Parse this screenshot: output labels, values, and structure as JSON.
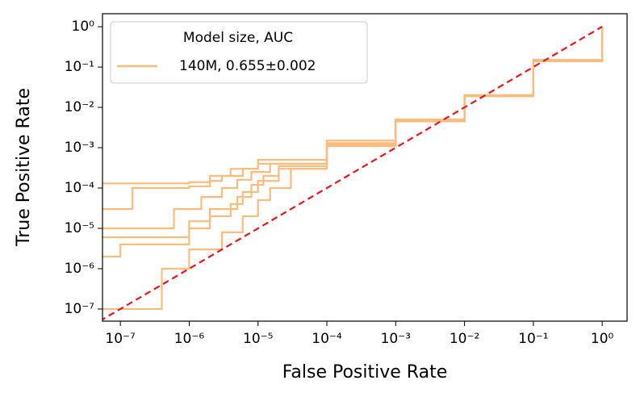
{
  "chart_data": {
    "type": "roc-step",
    "x_label": "False Positive Rate",
    "y_label": "True Positive Rate",
    "log_x": true,
    "log_y": true,
    "xlim": [
      5.5e-08,
      2.3
    ],
    "ylim": [
      5e-08,
      2.1
    ],
    "xticks": [
      {
        "value": 1e-07,
        "label": "10⁻⁷"
      },
      {
        "value": 1e-06,
        "label": "10⁻⁶"
      },
      {
        "value": 1e-05,
        "label": "10⁻⁵"
      },
      {
        "value": 0.0001,
        "label": "10⁻⁴"
      },
      {
        "value": 0.001,
        "label": "10⁻³"
      },
      {
        "value": 0.01,
        "label": "10⁻²"
      },
      {
        "value": 0.1,
        "label": "10⁻¹"
      },
      {
        "value": 1,
        "label": "10⁰"
      }
    ],
    "yticks": [
      {
        "value": 1e-07,
        "label": "10⁻⁷"
      },
      {
        "value": 1e-06,
        "label": "10⁻⁶"
      },
      {
        "value": 1e-05,
        "label": "10⁻⁵"
      },
      {
        "value": 0.0001,
        "label": "10⁻⁴"
      },
      {
        "value": 0.001,
        "label": "10⁻³"
      },
      {
        "value": 0.01,
        "label": "10⁻²"
      },
      {
        "value": 0.1,
        "label": "10⁻¹"
      },
      {
        "value": 1,
        "label": "10⁰"
      }
    ],
    "legend_title": "Model size, AUC",
    "legend_position": "upper left",
    "series": [
      {
        "name": "140M, 0.655±0.002",
        "color": "#fdbb7c",
        "curves": [
          {
            "x": [
              5.5e-08,
              1e-06,
              2e-06,
              4e-06,
              1e-05,
              0.0001,
              0.001,
              0.01,
              0.1,
              1
            ],
            "y": [
              0.00013,
              0.00014,
              0.0002,
              0.0003,
              0.0005,
              0.0015,
              0.005,
              0.02,
              0.15,
              1
            ]
          },
          {
            "x": [
              5.5e-08,
              1.5e-07,
              1e-06,
              2e-06,
              3e-06,
              6e-06,
              1e-05,
              0.0001,
              0.001,
              0.01,
              0.1,
              1
            ],
            "y": [
              3e-05,
              0.0001,
              0.00011,
              0.00015,
              0.0002,
              0.0003,
              0.0004,
              0.0013,
              0.0045,
              0.02,
              0.14,
              1
            ]
          },
          {
            "x": [
              5.5e-08,
              2e-07,
              6e-07,
              1.5e-06,
              3e-06,
              5e-06,
              8e-06,
              1.5e-05,
              0.0001,
              0.001,
              0.01,
              0.1,
              1
            ],
            "y": [
              1e-05,
              1e-05,
              3e-05,
              6e-05,
              0.0001,
              0.00016,
              0.00025,
              0.0004,
              0.0012,
              0.0045,
              0.019,
              0.14,
              1
            ]
          },
          {
            "x": [
              5.5e-08,
              1e-07,
              1e-06,
              2e-06,
              4e-06,
              6e-06,
              1e-05,
              2e-05,
              0.0001,
              0.001,
              0.01,
              0.1,
              1
            ],
            "y": [
              2e-06,
              4e-06,
              1e-05,
              2e-05,
              4e-05,
              8e-05,
              0.00015,
              0.00035,
              0.0012,
              0.0045,
              0.019,
              0.14,
              1
            ]
          },
          {
            "x": [
              5.5e-08,
              1.1e-07,
              4e-07,
              1e-06,
              3e-06,
              6e-06,
              1e-05,
              1.5e-05,
              3e-05,
              0.0001,
              0.001,
              0.01,
              0.1,
              1
            ],
            "y": [
              1e-07,
              1e-07,
              1e-06,
              3e-06,
              8e-06,
              2e-05,
              5e-05,
              0.0001,
              0.0003,
              0.0011,
              0.0045,
              0.019,
              0.14,
              1
            ]
          },
          {
            "x": [
              5.5e-08,
              3e-07,
              1e-06,
              2e-06,
              5e-06,
              8e-06,
              1.2e-05,
              2e-05,
              0.0001,
              0.001,
              0.01,
              0.1,
              1
            ],
            "y": [
              6e-06,
              6e-06,
              1.5e-05,
              3e-05,
              6e-05,
              0.00012,
              0.0002,
              0.0003,
              0.0012,
              0.0045,
              0.019,
              0.14,
              1
            ]
          }
        ]
      }
    ],
    "diagonal": {
      "color": "#e8161a",
      "x": [
        5e-08,
        1
      ],
      "y": [
        5e-08,
        1
      ]
    }
  }
}
